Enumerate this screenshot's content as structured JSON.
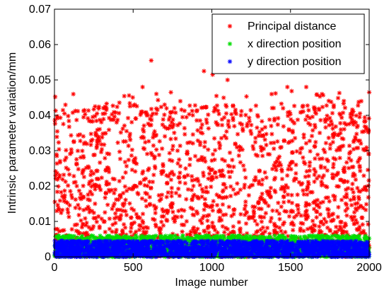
{
  "chart_data": {
    "type": "scatter",
    "title": "",
    "xlabel": "Image number",
    "ylabel": "Intrinsic parameter variation/mm",
    "xlim": [
      0,
      2000
    ],
    "ylim": [
      0,
      0.07
    ],
    "xticks": [
      0,
      500,
      1000,
      1500,
      2000
    ],
    "xtick_labels": [
      "0",
      "500",
      "1000",
      "1500",
      "2000"
    ],
    "yticks": [
      0,
      0.01,
      0.02,
      0.03,
      0.04,
      0.05,
      0.06,
      0.07
    ],
    "ytick_labels": [
      "0",
      "0.01",
      "0.02",
      "0.03",
      "0.04",
      "0.05",
      "0.06",
      "0.07"
    ],
    "grid": false,
    "legend_position": "top-right",
    "marker": "asterisk",
    "n_points_per_series": 2000,
    "series": [
      {
        "name": "Principal distance",
        "color": "#ff0000",
        "x_range": [
          1,
          2000
        ],
        "y_range": [
          0,
          0.0555
        ],
        "sample_points": [
          [
            120,
            0.046
          ],
          [
            320,
            0.042
          ],
          [
            395,
            0.038
          ],
          [
            510,
            0.043
          ],
          [
            560,
            0.048
          ],
          [
            615,
            0.0555
          ],
          [
            700,
            0.043
          ],
          [
            800,
            0.044
          ],
          [
            950,
            0.0525
          ],
          [
            1005,
            0.0515
          ],
          [
            1100,
            0.05
          ],
          [
            1185,
            0.04
          ],
          [
            1380,
            0.046
          ],
          [
            1480,
            0.048
          ],
          [
            1600,
            0.048
          ],
          [
            1700,
            0.046
          ],
          [
            1950,
            0.044
          ],
          [
            2000,
            0.0465
          ]
        ]
      },
      {
        "name": "x direction position",
        "color": "#00dd00",
        "x_range": [
          1,
          2000
        ],
        "y_range": [
          0,
          0.006
        ]
      },
      {
        "name": "y direction position",
        "color": "#0000ff",
        "x_range": [
          1,
          2000
        ],
        "y_range": [
          0,
          0.0045
        ]
      }
    ]
  }
}
